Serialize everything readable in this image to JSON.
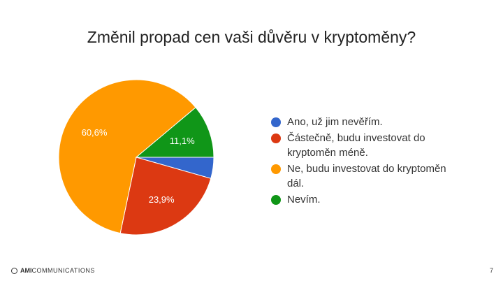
{
  "chart_data": {
    "type": "pie",
    "title": "Změnil propad cen vaši důvěru v kryptoměny?",
    "slices": [
      {
        "label": "Ano, už jim nevěřím.",
        "value": 4.4,
        "color": "#3366cc",
        "display": ""
      },
      {
        "label": "Částečně, budu investovat do kryptoměn méně.",
        "value": 23.9,
        "color": "#dc3912",
        "display": "23,9%"
      },
      {
        "label": "Ne, budu investovat do kryptoměn dál.",
        "value": 60.6,
        "color": "#ff9900",
        "display": "60,6%"
      },
      {
        "label": "Nevím.",
        "value": 11.1,
        "color": "#109618",
        "display": "11,1%"
      }
    ],
    "legend": {
      "position": "right",
      "items": [
        {
          "lines": [
            "Ano, už jim nevěřím."
          ]
        },
        {
          "lines": [
            "Částečně, budu investovat do",
            "kryptoměn méně."
          ]
        },
        {
          "lines": [
            "Ne, budu investovat do kryptoměn",
            "dál."
          ]
        },
        {
          "lines": [
            "Nevím."
          ]
        }
      ]
    }
  },
  "footer": {
    "brand_part1": "AMI",
    "brand_part2": "COMMUNICATIONS",
    "page_number": "7"
  }
}
